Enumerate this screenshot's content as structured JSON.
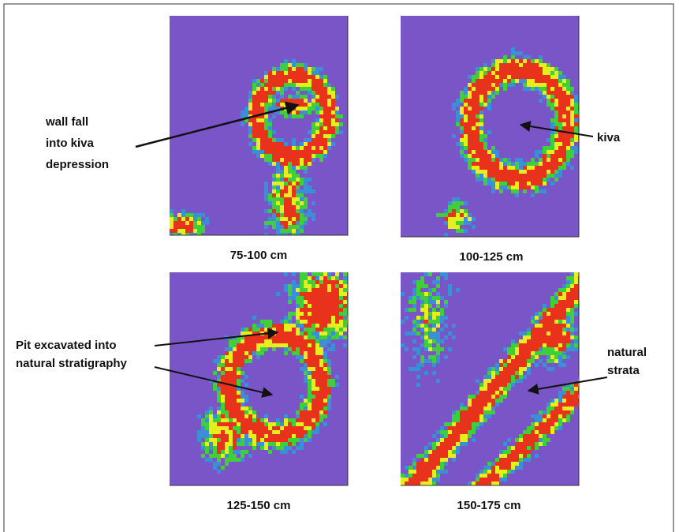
{
  "panels": [
    {
      "caption": "75-100 cm",
      "annotation": [
        "wall fall",
        "into kiva",
        "depression"
      ]
    },
    {
      "caption": "100-125 cm",
      "annotation": [
        "kiva"
      ]
    },
    {
      "caption": "125-150 cm",
      "annotation": [
        "Pit excavated into",
        "natural stratigraphy"
      ]
    },
    {
      "caption": "150-175 cm",
      "annotation": [
        "natural",
        "strata"
      ]
    }
  ]
}
